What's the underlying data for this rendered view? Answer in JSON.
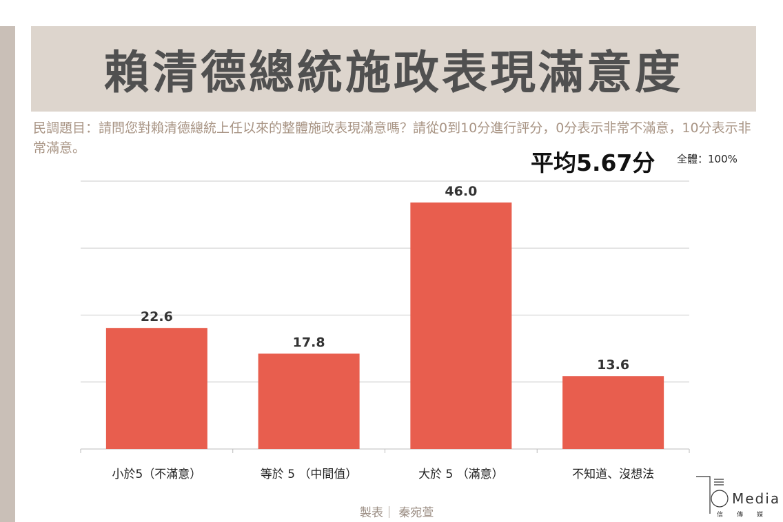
{
  "title": "賴清德總統施政表現滿意度",
  "question": "民調題目：請問您對賴清德總統上任以來的整體施政表現滿意嗎？請從0到10分進行評分，0分表示非常不滿意，10分表示非常滿意。",
  "average": "平均5.67分",
  "total": "全體：100%",
  "credit": "製表｜ 秦宛萱",
  "logo": {
    "text": "Media",
    "sub": "信傳媒"
  },
  "chart_data": {
    "type": "bar",
    "title": "賴清德總統施政表現滿意度",
    "categories": [
      "小於5（不滿意）",
      "等於 5 （中間值）",
      "大於 5 （滿意）",
      "不知道、沒想法"
    ],
    "values": [
      22.6,
      17.8,
      46.0,
      13.6
    ],
    "value_labels": [
      "22.6",
      "17.8",
      "46.0",
      "13.6"
    ],
    "ylim": [
      0,
      50
    ],
    "grid_values": [
      12.5,
      25,
      37.5,
      50
    ],
    "grid": true,
    "bar_color": "#e85e4e"
  }
}
